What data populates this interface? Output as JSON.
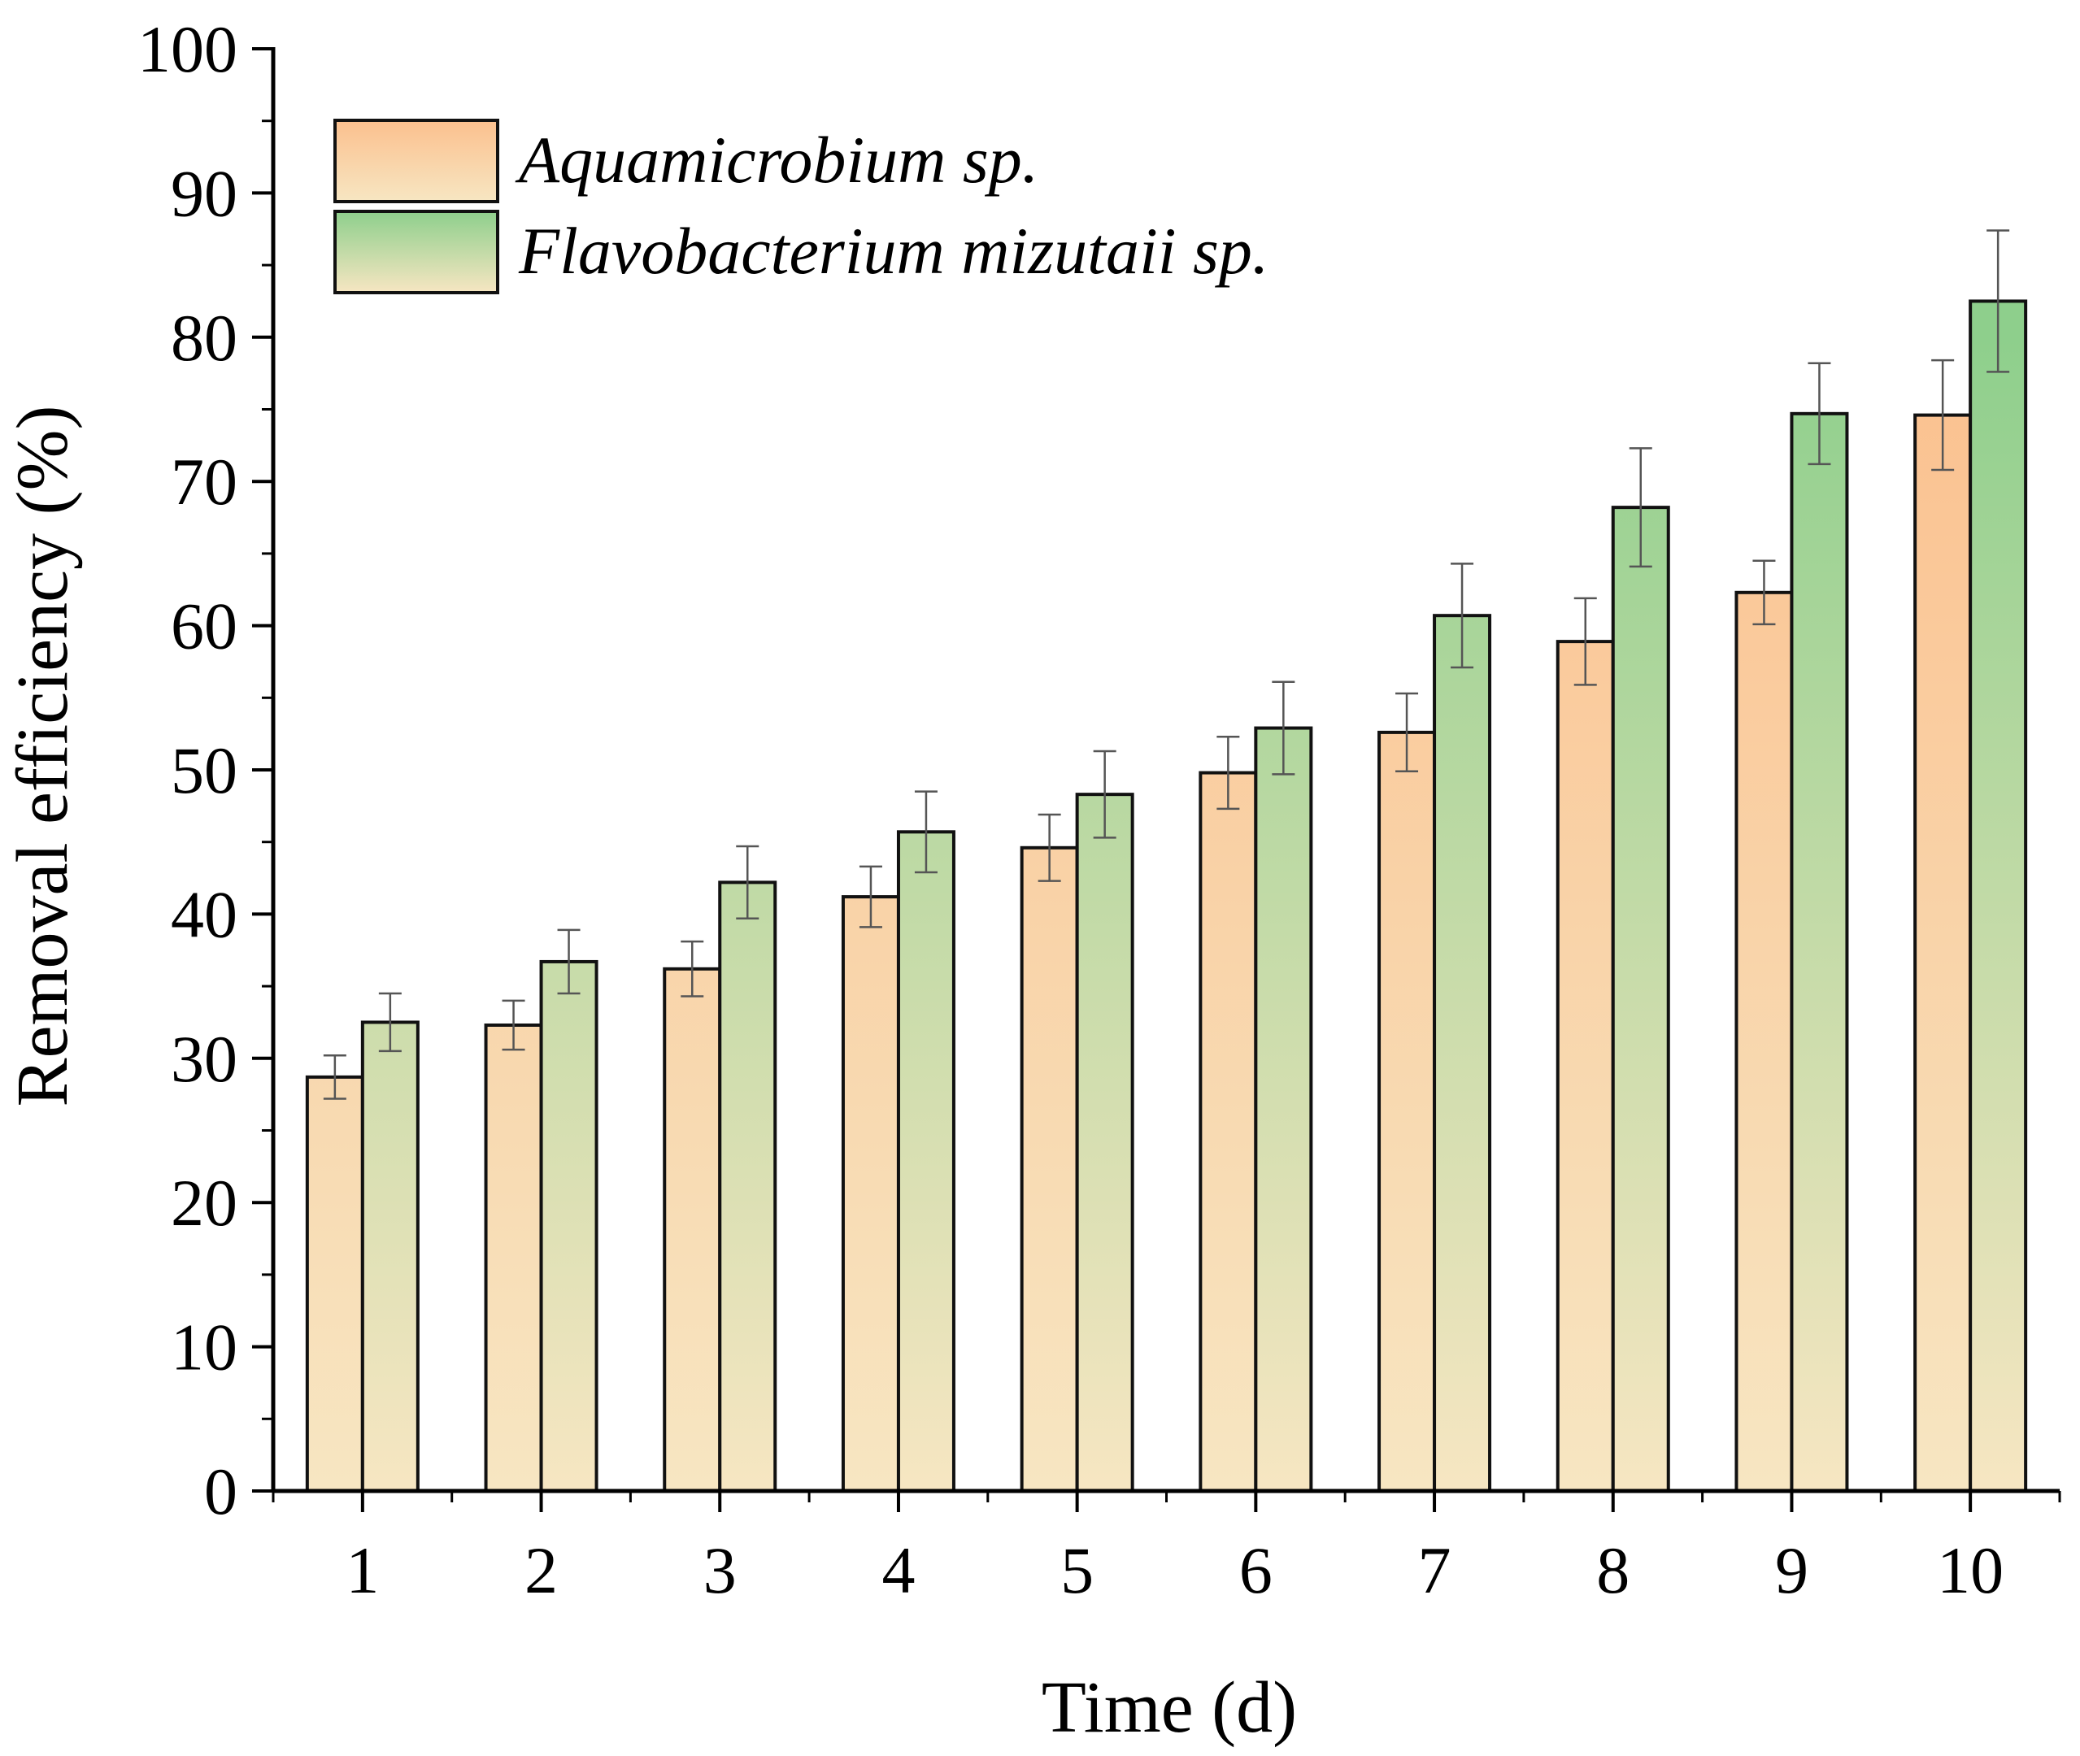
{
  "chart_data": {
    "type": "bar",
    "title": "",
    "xlabel": "Time (d)",
    "ylabel": "Removal efficiency (%)",
    "ylim": [
      0,
      100
    ],
    "yticks": [
      0,
      10,
      20,
      30,
      40,
      50,
      60,
      70,
      80,
      90,
      100
    ],
    "categories": [
      "1",
      "2",
      "3",
      "4",
      "5",
      "6",
      "7",
      "8",
      "9",
      "10"
    ],
    "legend_position": "top-left",
    "series": [
      {
        "name": "Aquamicrobium sp.",
        "gradient_top": "#fbc08e",
        "gradient_bottom": "#f7e6c2",
        "values": [
          28.7,
          32.3,
          36.2,
          41.2,
          44.6,
          49.8,
          52.6,
          58.9,
          62.3,
          74.6
        ],
        "errors": [
          1.5,
          1.7,
          1.9,
          2.1,
          2.3,
          2.5,
          2.7,
          3.0,
          2.2,
          3.8
        ]
      },
      {
        "name": "Flavobacterium mizutaii sp.",
        "gradient_top": "#8ecf8c",
        "gradient_bottom": "#f7e6c2",
        "values": [
          32.5,
          36.7,
          42.2,
          45.7,
          48.3,
          52.9,
          60.7,
          68.2,
          74.7,
          82.5
        ],
        "errors": [
          2.0,
          2.2,
          2.5,
          2.8,
          3.0,
          3.2,
          3.6,
          4.1,
          3.5,
          4.9
        ]
      }
    ]
  }
}
